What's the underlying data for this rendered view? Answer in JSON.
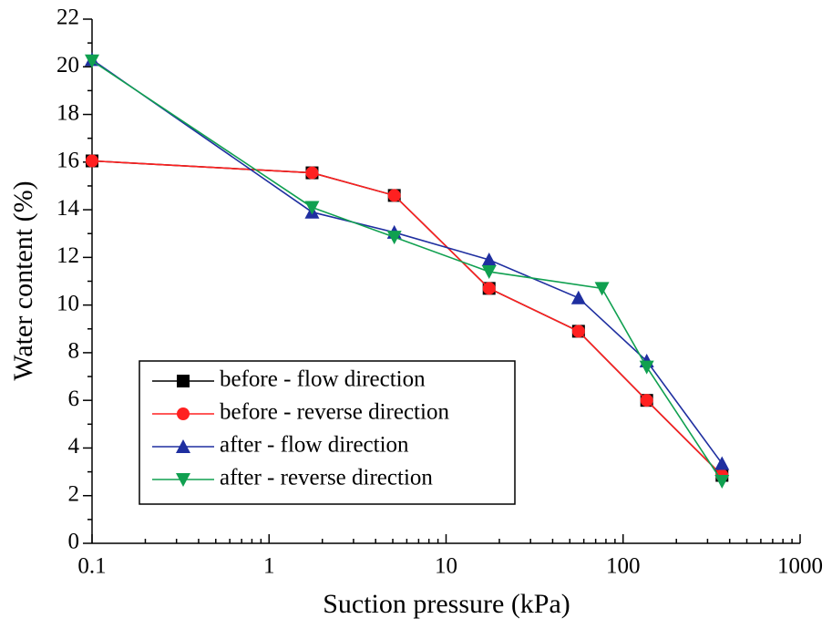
{
  "chart_data": {
    "type": "line",
    "x_label": "Suction pressure (kPa)",
    "y_label": "Water content (%)",
    "xscale": "log",
    "xlim": [
      0.1,
      1000
    ],
    "xticks": [
      0.1,
      1,
      10,
      100,
      1000
    ],
    "ylim": [
      0,
      22
    ],
    "yticks": [
      0,
      2,
      4,
      6,
      8,
      10,
      12,
      14,
      16,
      18,
      20,
      22
    ],
    "legend": "lower left",
    "series": [
      {
        "name": "before - flow direction",
        "color": "#000000",
        "marker": "square",
        "x": [
          0.1,
          1.75,
          5.1,
          17.5,
          56,
          136,
          362
        ],
        "values": [
          16.05,
          15.55,
          14.6,
          10.7,
          8.9,
          6.0,
          2.85
        ]
      },
      {
        "name": "before - reverse direction",
        "color": "#ff2020",
        "marker": "circle",
        "x": [
          0.1,
          1.75,
          5.1,
          17.5,
          56,
          136,
          362
        ],
        "values": [
          16.05,
          15.55,
          14.6,
          10.7,
          8.9,
          6.0,
          2.85
        ]
      },
      {
        "name": "after - flow direction",
        "color": "#1f2fa0",
        "marker": "triangle-up",
        "x": [
          0.1,
          1.75,
          5.1,
          17.5,
          56,
          136,
          362
        ],
        "values": [
          20.3,
          13.9,
          13.05,
          11.9,
          10.3,
          7.65,
          3.35
        ]
      },
      {
        "name": "after - reverse direction",
        "color": "#10a050",
        "marker": "triangle-down",
        "x": [
          0.1,
          1.75,
          5.1,
          17.5,
          76,
          136,
          362
        ],
        "values": [
          20.25,
          14.1,
          12.85,
          11.4,
          10.7,
          7.4,
          2.6
        ]
      }
    ]
  }
}
